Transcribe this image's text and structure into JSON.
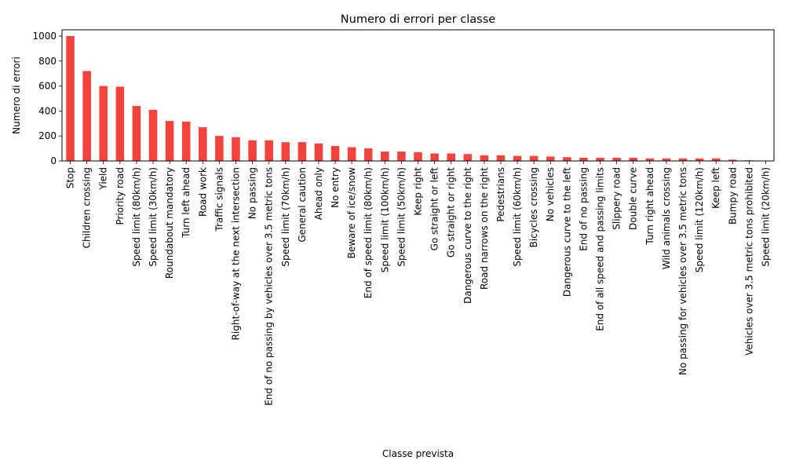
{
  "chart_data": {
    "type": "bar",
    "title": "Numero di errori per classe",
    "xlabel": "Classe prevista",
    "ylabel": "Numero di errori",
    "ylim": [
      0,
      1050
    ],
    "yticks": [
      0,
      200,
      400,
      600,
      800,
      1000
    ],
    "grid": false,
    "legend": "none",
    "bar_color": "#f4433c",
    "categories": [
      "Stop",
      "Children crossing",
      "Yield",
      "Priority road",
      "Speed limit (80km/h)",
      "Speed limit (30km/h)",
      "Roundabout mandatory",
      "Turn left ahead",
      "Road work",
      "Traffic signals",
      "Right-of-way at the next intersection",
      "No passing",
      "End of no passing by vehicles over 3.5 metric tons",
      "Speed limit (70km/h)",
      "General caution",
      "Ahead only",
      "No entry",
      "Beware of ice/snow",
      "End of speed limit (80km/h)",
      "Speed limit (100km/h)",
      "Speed limit (50km/h)",
      "Keep right",
      "Go straight or left",
      "Go straight or right",
      "Dangerous curve to the right",
      "Road narrows on the right",
      "Pedestrians",
      "Speed limit (60km/h)",
      "Bicycles crossing",
      "No vehicles",
      "Dangerous curve to the left",
      "End of no passing",
      "End of all speed and passing limits",
      "Slippery road",
      "Double curve",
      "Turn right ahead",
      "Wild animals crossing",
      "No passing for vehicles over 3.5 metric tons",
      "Speed limit (120km/h)",
      "Keep left",
      "Bumpy road",
      "Vehicles over 3.5 metric tons prohibited",
      "Speed limit (20km/h)"
    ],
    "values": [
      1000,
      720,
      600,
      595,
      440,
      410,
      320,
      315,
      270,
      200,
      190,
      165,
      165,
      150,
      150,
      140,
      120,
      110,
      100,
      75,
      75,
      70,
      60,
      60,
      55,
      45,
      45,
      40,
      40,
      35,
      30,
      25,
      25,
      25,
      25,
      20,
      20,
      20,
      20,
      20,
      10,
      5,
      2
    ]
  }
}
